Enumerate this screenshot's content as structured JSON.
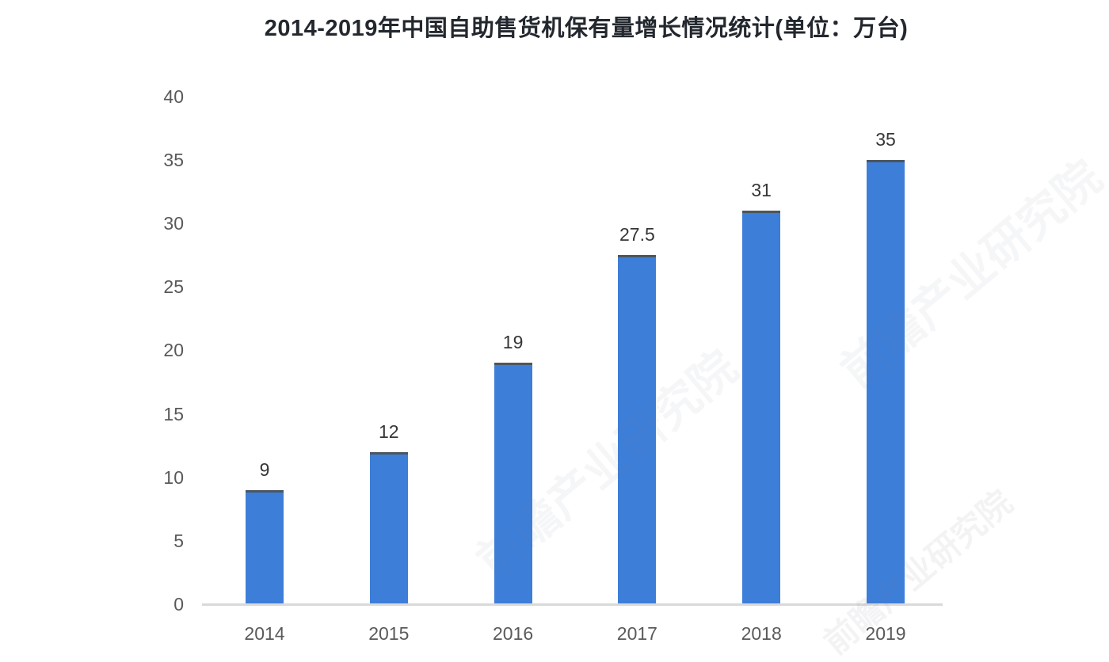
{
  "title": "2014-2019年中国自助售货机保有量增长情况统计(单位：万台)",
  "watermark": {
    "text": "前瞻产业研究院"
  },
  "chart_data": {
    "type": "bar",
    "title": "2014-2019年中国自助售货机保有量增长情况统计(单位：万台)",
    "categories": [
      "2014",
      "2015",
      "2016",
      "2017",
      "2018",
      "2019"
    ],
    "values": [
      9,
      12,
      19,
      27.5,
      31,
      35
    ],
    "data_labels": [
      "9",
      "12",
      "19",
      "27.5",
      "31",
      "35"
    ],
    "xlabel": "",
    "ylabel": "",
    "ylim": [
      0,
      40
    ],
    "ytick_step": 5,
    "yticks": [
      0,
      5,
      10,
      15,
      20,
      25,
      30,
      35,
      40
    ],
    "grid": false,
    "legend": null,
    "bar_color": "#3d7ed9",
    "bar_top_edge_color": "#4c565e",
    "axis_line_color": "#d9d9d9",
    "tick_label_color": "#595959",
    "data_label_color": "#363636",
    "title_color": "#23272e",
    "unit": "万台"
  }
}
